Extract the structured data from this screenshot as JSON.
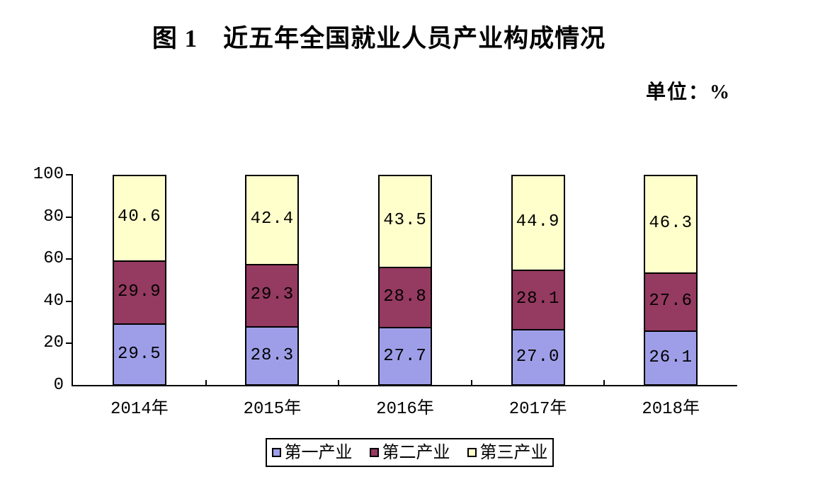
{
  "figure": {
    "title": "图 1　近五年全国就业人员产业构成情况",
    "unit_label": "单位：%"
  },
  "chart_data": {
    "type": "bar",
    "stacked": true,
    "title": "图 1　近五年全国就业人员产业构成情况",
    "unit": "%",
    "categories": [
      "2014年",
      "2015年",
      "2016年",
      "2017年",
      "2018年"
    ],
    "series": [
      {
        "name": "第一产业",
        "color": "#9E9EE8",
        "values": [
          29.5,
          28.3,
          27.7,
          27.0,
          26.1
        ]
      },
      {
        "name": "第二产业",
        "color": "#953A60",
        "values": [
          29.9,
          29.3,
          28.8,
          28.1,
          27.6
        ]
      },
      {
        "name": "第三产业",
        "color": "#FFFFCC",
        "values": [
          40.6,
          42.4,
          43.5,
          44.9,
          46.3
        ]
      }
    ],
    "ylim": [
      0,
      100
    ],
    "yticks": [
      0,
      20,
      40,
      60,
      80,
      100
    ],
    "grid": false,
    "legend_position": "bottom",
    "bar_border_color": "#000000",
    "axis_color": "#000000",
    "label_decimals": 1
  }
}
